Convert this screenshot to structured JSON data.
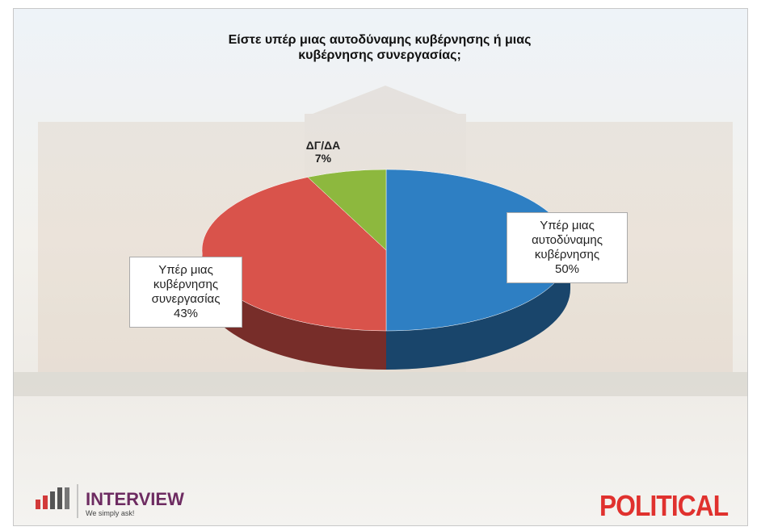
{
  "chart_data": {
    "type": "pie",
    "title": "Είστε υπέρ μιας αυτοδύναμης κυβέρνησης ή μιας κυβέρνησης συνεργασίας;",
    "categories": [
      "Υπέρ μιας αυτοδύναμης κυβέρνησης",
      "Υπέρ μιας κυβέρνησης συνεργασίας",
      "ΔΓ/ΔΑ"
    ],
    "values": [
      50,
      43,
      7
    ],
    "value_labels": [
      "50%",
      "43%",
      "7%"
    ],
    "colors": [
      "#2e7fc3",
      "#d9534b",
      "#8db83e"
    ]
  },
  "branding": {
    "interview": "INTERVIEW",
    "slogan": "We simply ask!",
    "political": "POLITICAL"
  }
}
